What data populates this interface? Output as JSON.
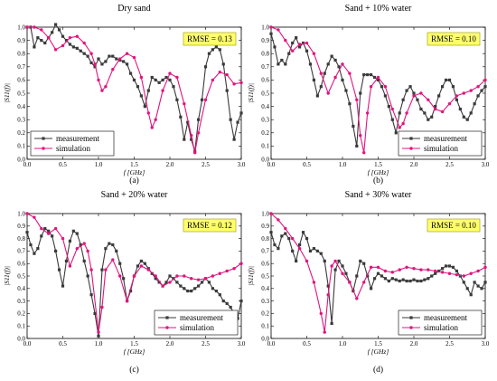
{
  "figure": {
    "ylabel": "|S11(f)|",
    "xlabel": "f [GHz]"
  },
  "colors": {
    "measurement": "#3a3a3a",
    "simulation": "#e0157e",
    "rmse_bg": "#ffff6e",
    "rmse_border": "#9a9a00"
  },
  "chart_data": [
    {
      "type": "line",
      "title": "Dry sand",
      "label": "(a)",
      "rmse": "RMSE = 0.13",
      "xlim": [
        0,
        3.0
      ],
      "ylim": [
        0,
        1.0
      ],
      "xticks": [
        "0.0",
        "0.5",
        "1.0",
        "1.5",
        "2.0",
        "2.5",
        "3.0"
      ],
      "yticks": [
        "0.0",
        "0.1",
        "0.2",
        "0.3",
        "0.4",
        "0.5",
        "0.6",
        "0.7",
        "0.8",
        "0.9",
        "1.0"
      ],
      "xlabel": "f [GHz]",
      "ylabel": "|S11(f)|",
      "legend": {
        "position": "bottom-left",
        "entries": [
          "measurement",
          "simulation"
        ]
      },
      "series": [
        {
          "name": "measurement",
          "marker": "square",
          "x": [
            0,
            0.05,
            0.1,
            0.15,
            0.2,
            0.25,
            0.3,
            0.35,
            0.4,
            0.45,
            0.5,
            0.55,
            0.6,
            0.65,
            0.7,
            0.75,
            0.8,
            0.85,
            0.9,
            0.95,
            1.0,
            1.05,
            1.1,
            1.15,
            1.2,
            1.25,
            1.3,
            1.35,
            1.4,
            1.45,
            1.5,
            1.55,
            1.6,
            1.65,
            1.7,
            1.75,
            1.8,
            1.85,
            1.9,
            1.95,
            2.0,
            2.05,
            2.1,
            2.15,
            2.2,
            2.25,
            2.3,
            2.35,
            2.4,
            2.45,
            2.5,
            2.55,
            2.6,
            2.65,
            2.7,
            2.75,
            2.8,
            2.85,
            2.9,
            2.95,
            3.0
          ],
          "values": [
            1.0,
            1.0,
            0.85,
            0.92,
            0.9,
            0.88,
            0.92,
            0.96,
            1.02,
            0.98,
            0.93,
            0.9,
            0.87,
            0.85,
            0.84,
            0.82,
            0.8,
            0.78,
            0.73,
            0.7,
            0.76,
            0.72,
            0.74,
            0.78,
            0.78,
            0.76,
            0.75,
            0.74,
            0.72,
            0.65,
            0.6,
            0.55,
            0.48,
            0.4,
            0.52,
            0.62,
            0.6,
            0.58,
            0.6,
            0.62,
            0.6,
            0.55,
            0.45,
            0.32,
            0.15,
            0.28,
            0.15,
            0.06,
            0.3,
            0.45,
            0.7,
            0.8,
            0.83,
            0.85,
            0.83,
            0.72,
            0.52,
            0.3,
            0.15,
            0.28,
            0.35
          ]
        },
        {
          "name": "simulation",
          "marker": "circle",
          "x": [
            0,
            0.1,
            0.2,
            0.3,
            0.4,
            0.5,
            0.6,
            0.7,
            0.8,
            0.9,
            0.95,
            1.0,
            1.05,
            1.1,
            1.2,
            1.3,
            1.4,
            1.5,
            1.6,
            1.7,
            1.75,
            1.8,
            1.9,
            2.0,
            2.1,
            2.2,
            2.3,
            2.35,
            2.4,
            2.5,
            2.6,
            2.7,
            2.8,
            2.9,
            3.0
          ],
          "values": [
            1.0,
            1.0,
            0.98,
            0.92,
            0.83,
            0.86,
            0.92,
            0.93,
            0.88,
            0.8,
            0.72,
            0.6,
            0.52,
            0.55,
            0.68,
            0.76,
            0.8,
            0.77,
            0.62,
            0.35,
            0.24,
            0.3,
            0.52,
            0.65,
            0.62,
            0.42,
            0.18,
            0.05,
            0.2,
            0.45,
            0.6,
            0.66,
            0.64,
            0.57,
            0.58
          ]
        }
      ]
    },
    {
      "type": "line",
      "title": "Sand + 10% water",
      "label": "(b)",
      "rmse": "RMSE = 0.10",
      "xlim": [
        0,
        3.0
      ],
      "ylim": [
        0,
        1.0
      ],
      "xticks": [
        "0.0",
        "0.5",
        "1.0",
        "1.5",
        "2.0",
        "2.5",
        "3.0"
      ],
      "yticks": [
        "0.0",
        "0.1",
        "0.2",
        "0.3",
        "0.4",
        "0.5",
        "0.6",
        "0.7",
        "0.8",
        "0.9",
        "1.0"
      ],
      "xlabel": "f [GHz]",
      "ylabel": "|S11(f)|",
      "legend": {
        "position": "bottom-right",
        "entries": [
          "measurement",
          "simulation"
        ]
      },
      "series": [
        {
          "name": "measurement",
          "marker": "square",
          "x": [
            0,
            0.05,
            0.1,
            0.15,
            0.2,
            0.25,
            0.3,
            0.35,
            0.4,
            0.45,
            0.5,
            0.55,
            0.6,
            0.65,
            0.7,
            0.75,
            0.8,
            0.85,
            0.9,
            0.95,
            1.0,
            1.05,
            1.1,
            1.15,
            1.2,
            1.25,
            1.3,
            1.35,
            1.4,
            1.45,
            1.5,
            1.55,
            1.6,
            1.65,
            1.7,
            1.75,
            1.8,
            1.85,
            1.9,
            1.95,
            2.0,
            2.05,
            2.1,
            2.15,
            2.2,
            2.25,
            2.3,
            2.35,
            2.4,
            2.45,
            2.5,
            2.55,
            2.6,
            2.65,
            2.7,
            2.75,
            2.8,
            2.85,
            2.9,
            2.95,
            3.0
          ],
          "values": [
            0.95,
            0.85,
            0.72,
            0.75,
            0.72,
            0.8,
            0.88,
            0.92,
            0.85,
            0.88,
            0.82,
            0.72,
            0.6,
            0.48,
            0.55,
            0.65,
            0.72,
            0.78,
            0.75,
            0.7,
            0.6,
            0.52,
            0.42,
            0.25,
            0.1,
            0.5,
            0.64,
            0.64,
            0.64,
            0.62,
            0.6,
            0.55,
            0.48,
            0.4,
            0.3,
            0.2,
            0.35,
            0.45,
            0.52,
            0.55,
            0.5,
            0.45,
            0.38,
            0.35,
            0.3,
            0.32,
            0.4,
            0.48,
            0.55,
            0.6,
            0.6,
            0.55,
            0.45,
            0.38,
            0.32,
            0.3,
            0.35,
            0.42,
            0.48,
            0.52,
            0.55
          ]
        },
        {
          "name": "simulation",
          "marker": "circle",
          "x": [
            0,
            0.1,
            0.2,
            0.3,
            0.4,
            0.5,
            0.6,
            0.7,
            0.8,
            0.9,
            1.0,
            1.1,
            1.2,
            1.25,
            1.3,
            1.35,
            1.4,
            1.5,
            1.6,
            1.7,
            1.8,
            1.85,
            1.9,
            2.0,
            2.1,
            2.2,
            2.3,
            2.4,
            2.5,
            2.6,
            2.7,
            2.8,
            2.9,
            3.0
          ],
          "values": [
            1.0,
            0.98,
            0.9,
            0.82,
            0.87,
            0.88,
            0.8,
            0.65,
            0.5,
            0.62,
            0.72,
            0.65,
            0.45,
            0.18,
            0.05,
            0.35,
            0.55,
            0.62,
            0.55,
            0.38,
            0.24,
            0.27,
            0.35,
            0.48,
            0.5,
            0.45,
            0.38,
            0.36,
            0.42,
            0.48,
            0.5,
            0.52,
            0.55,
            0.6
          ]
        }
      ]
    },
    {
      "type": "line",
      "title": "Sand + 20% water",
      "label": "(c)",
      "rmse": "RMSE = 0.12",
      "xlim": [
        0,
        3.0
      ],
      "ylim": [
        0,
        1.0
      ],
      "xticks": [
        "0.0",
        "0.5",
        "1.0",
        "1.5",
        "2.0",
        "2.5",
        "3.0"
      ],
      "yticks": [
        "0.0",
        "0.1",
        "0.2",
        "0.3",
        "0.4",
        "0.5",
        "0.6",
        "0.7",
        "0.8",
        "0.9",
        "1.0"
      ],
      "xlabel": "f [GHz]",
      "ylabel": "|S11(f)|",
      "legend": {
        "position": "bottom-right",
        "entries": [
          "measurement",
          "simulation"
        ]
      },
      "series": [
        {
          "name": "measurement",
          "marker": "square",
          "x": [
            0,
            0.05,
            0.1,
            0.15,
            0.2,
            0.25,
            0.3,
            0.35,
            0.4,
            0.45,
            0.5,
            0.55,
            0.6,
            0.65,
            0.7,
            0.75,
            0.8,
            0.85,
            0.9,
            0.95,
            1.0,
            1.05,
            1.1,
            1.15,
            1.2,
            1.25,
            1.3,
            1.35,
            1.4,
            1.45,
            1.5,
            1.55,
            1.6,
            1.65,
            1.7,
            1.75,
            1.8,
            1.85,
            1.9,
            1.95,
            2.0,
            2.05,
            2.1,
            2.15,
            2.2,
            2.25,
            2.3,
            2.35,
            2.4,
            2.45,
            2.5,
            2.55,
            2.6,
            2.65,
            2.7,
            2.75,
            2.8,
            2.85,
            2.9,
            2.95,
            3.0
          ],
          "values": [
            0.85,
            0.75,
            0.68,
            0.72,
            0.82,
            0.88,
            0.86,
            0.82,
            0.7,
            0.55,
            0.42,
            0.62,
            0.78,
            0.86,
            0.84,
            0.75,
            0.62,
            0.5,
            0.35,
            0.2,
            0.02,
            0.55,
            0.72,
            0.76,
            0.75,
            0.7,
            0.6,
            0.48,
            0.3,
            0.38,
            0.5,
            0.58,
            0.62,
            0.6,
            0.56,
            0.52,
            0.48,
            0.45,
            0.42,
            0.45,
            0.5,
            0.48,
            0.45,
            0.42,
            0.4,
            0.38,
            0.38,
            0.4,
            0.42,
            0.45,
            0.48,
            0.45,
            0.4,
            0.38,
            0.35,
            0.3,
            0.28,
            0.25,
            0.2,
            0.16,
            0.3
          ]
        },
        {
          "name": "simulation",
          "marker": "circle",
          "x": [
            0,
            0.1,
            0.2,
            0.3,
            0.4,
            0.5,
            0.6,
            0.7,
            0.8,
            0.85,
            0.9,
            1.0,
            1.05,
            1.1,
            1.2,
            1.3,
            1.4,
            1.5,
            1.6,
            1.7,
            1.8,
            1.9,
            2.0,
            2.1,
            2.2,
            2.3,
            2.4,
            2.5,
            2.6,
            2.7,
            2.8,
            2.9,
            3.0
          ],
          "values": [
            1.0,
            0.97,
            0.88,
            0.84,
            0.88,
            0.8,
            0.58,
            0.72,
            0.76,
            0.7,
            0.55,
            0.05,
            0.25,
            0.55,
            0.63,
            0.5,
            0.3,
            0.5,
            0.58,
            0.55,
            0.5,
            0.42,
            0.45,
            0.5,
            0.5,
            0.48,
            0.47,
            0.48,
            0.5,
            0.52,
            0.54,
            0.56,
            0.6
          ]
        }
      ]
    },
    {
      "type": "line",
      "title": "Sand + 30% water",
      "label": "(d)",
      "rmse": "RMSE = 0.10",
      "xlim": [
        0,
        3.0
      ],
      "ylim": [
        0,
        1.0
      ],
      "xticks": [
        "0.0",
        "0.5",
        "1.0",
        "1.5",
        "2.0",
        "2.5",
        "3.0"
      ],
      "yticks": [
        "0.0",
        "0.1",
        "0.2",
        "0.3",
        "0.4",
        "0.5",
        "0.6",
        "0.7",
        "0.8",
        "0.9",
        "1.0"
      ],
      "xlabel": "f [GHz]",
      "ylabel": "|S11(f)|",
      "legend": {
        "position": "bottom-right",
        "entries": [
          "measurement",
          "simulation"
        ]
      },
      "series": [
        {
          "name": "measurement",
          "marker": "square",
          "x": [
            0,
            0.05,
            0.1,
            0.15,
            0.2,
            0.25,
            0.3,
            0.35,
            0.4,
            0.45,
            0.5,
            0.55,
            0.6,
            0.65,
            0.7,
            0.75,
            0.8,
            0.85,
            0.9,
            0.95,
            1.0,
            1.05,
            1.1,
            1.15,
            1.2,
            1.25,
            1.3,
            1.35,
            1.4,
            1.45,
            1.5,
            1.55,
            1.6,
            1.65,
            1.7,
            1.75,
            1.8,
            1.85,
            1.9,
            1.95,
            2.0,
            2.05,
            2.1,
            2.15,
            2.2,
            2.25,
            2.3,
            2.35,
            2.4,
            2.45,
            2.5,
            2.55,
            2.6,
            2.65,
            2.7,
            2.75,
            2.8,
            2.85,
            2.9,
            2.95,
            3.0
          ],
          "values": [
            0.85,
            0.75,
            0.72,
            0.82,
            0.84,
            0.8,
            0.7,
            0.62,
            0.75,
            0.85,
            0.8,
            0.7,
            0.72,
            0.7,
            0.68,
            0.62,
            0.42,
            0.12,
            0.55,
            0.62,
            0.58,
            0.52,
            0.45,
            0.38,
            0.5,
            0.62,
            0.6,
            0.5,
            0.4,
            0.48,
            0.52,
            0.5,
            0.48,
            0.46,
            0.48,
            0.47,
            0.46,
            0.47,
            0.46,
            0.46,
            0.47,
            0.46,
            0.46,
            0.47,
            0.48,
            0.5,
            0.52,
            0.54,
            0.56,
            0.58,
            0.58,
            0.57,
            0.54,
            0.5,
            0.45,
            0.4,
            0.35,
            0.45,
            0.42,
            0.4,
            0.45
          ]
        },
        {
          "name": "simulation",
          "marker": "circle",
          "x": [
            0,
            0.1,
            0.2,
            0.3,
            0.4,
            0.5,
            0.6,
            0.7,
            0.75,
            0.8,
            0.85,
            0.9,
            1.0,
            1.1,
            1.2,
            1.3,
            1.4,
            1.5,
            1.6,
            1.7,
            1.8,
            1.9,
            2.0,
            2.1,
            2.2,
            2.3,
            2.4,
            2.5,
            2.6,
            2.7,
            2.8,
            2.9,
            3.0
          ],
          "values": [
            1.0,
            0.95,
            0.88,
            0.8,
            0.72,
            0.62,
            0.45,
            0.2,
            0.05,
            0.35,
            0.58,
            0.62,
            0.52,
            0.45,
            0.32,
            0.45,
            0.57,
            0.57,
            0.54,
            0.53,
            0.55,
            0.57,
            0.56,
            0.55,
            0.55,
            0.54,
            0.53,
            0.52,
            0.51,
            0.5,
            0.52,
            0.54,
            0.57
          ]
        }
      ]
    }
  ]
}
